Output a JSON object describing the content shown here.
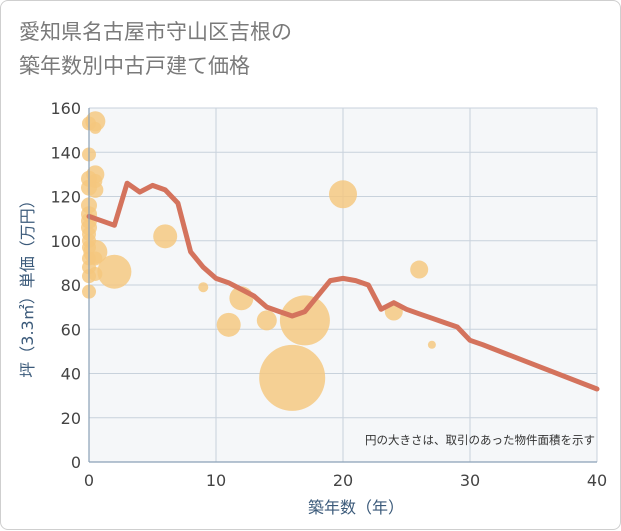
{
  "chart_data": {
    "type": "scatter",
    "title": "愛知県名古屋市守山区吉根の\n築年数別中古戸建て価格",
    "xlabel": "築年数（年）",
    "ylabel": "坪（3.3㎡）単価（万円）",
    "xlim": [
      0,
      40
    ],
    "ylim": [
      0,
      160
    ],
    "x_ticks": [
      0,
      10,
      20,
      30,
      40
    ],
    "y_ticks": [
      0,
      20,
      40,
      60,
      80,
      100,
      120,
      140,
      160
    ],
    "grid": true,
    "note": "円の大きさは、取引のあった物件面積を示す",
    "colors": {
      "bubble": "#f5c77e",
      "line": "#d4735d",
      "grid": "#c8d2dc",
      "plot_bg": "#f5f7f9"
    },
    "points": [
      {
        "x": 0,
        "y": 153,
        "s": 7
      },
      {
        "x": 0,
        "y": 139,
        "s": 7
      },
      {
        "x": 0,
        "y": 128,
        "s": 8
      },
      {
        "x": 0,
        "y": 124,
        "s": 8
      },
      {
        "x": 0,
        "y": 116,
        "s": 8
      },
      {
        "x": 0,
        "y": 112,
        "s": 8
      },
      {
        "x": 0,
        "y": 109,
        "s": 8
      },
      {
        "x": 0,
        "y": 106,
        "s": 8
      },
      {
        "x": 0,
        "y": 103,
        "s": 7
      },
      {
        "x": 0,
        "y": 100,
        "s": 7
      },
      {
        "x": 0,
        "y": 97,
        "s": 7
      },
      {
        "x": 0,
        "y": 92,
        "s": 7
      },
      {
        "x": 0,
        "y": 88,
        "s": 7
      },
      {
        "x": 0,
        "y": 84,
        "s": 7
      },
      {
        "x": 0,
        "y": 77,
        "s": 7
      },
      {
        "x": 0.5,
        "y": 154,
        "s": 10
      },
      {
        "x": 0.5,
        "y": 151,
        "s": 6
      },
      {
        "x": 0.5,
        "y": 130,
        "s": 9
      },
      {
        "x": 0.5,
        "y": 127,
        "s": 7
      },
      {
        "x": 0.5,
        "y": 123,
        "s": 8
      },
      {
        "x": 0.5,
        "y": 95,
        "s": 12
      },
      {
        "x": 0.5,
        "y": 92,
        "s": 7
      },
      {
        "x": 0.5,
        "y": 85,
        "s": 7
      },
      {
        "x": 2,
        "y": 86,
        "s": 17
      },
      {
        "x": 6,
        "y": 102,
        "s": 12
      },
      {
        "x": 9,
        "y": 79,
        "s": 5
      },
      {
        "x": 11,
        "y": 62,
        "s": 12
      },
      {
        "x": 12,
        "y": 74,
        "s": 12
      },
      {
        "x": 14,
        "y": 64,
        "s": 10
      },
      {
        "x": 16,
        "y": 38,
        "s": 33
      },
      {
        "x": 17,
        "y": 64,
        "s": 25
      },
      {
        "x": 20,
        "y": 121,
        "s": 14
      },
      {
        "x": 24,
        "y": 68,
        "s": 9
      },
      {
        "x": 26,
        "y": 87,
        "s": 9
      },
      {
        "x": 27,
        "y": 53,
        "s": 4
      }
    ],
    "trend": [
      {
        "x": 0,
        "y": 111
      },
      {
        "x": 1,
        "y": 109
      },
      {
        "x": 2,
        "y": 107
      },
      {
        "x": 3,
        "y": 126
      },
      {
        "x": 4,
        "y": 122
      },
      {
        "x": 5,
        "y": 125
      },
      {
        "x": 6,
        "y": 123
      },
      {
        "x": 7,
        "y": 117
      },
      {
        "x": 8,
        "y": 95
      },
      {
        "x": 9,
        "y": 88
      },
      {
        "x": 10,
        "y": 83
      },
      {
        "x": 11,
        "y": 81
      },
      {
        "x": 12,
        "y": 78
      },
      {
        "x": 13,
        "y": 75
      },
      {
        "x": 14,
        "y": 70
      },
      {
        "x": 15,
        "y": 68
      },
      {
        "x": 16,
        "y": 66
      },
      {
        "x": 17,
        "y": 68
      },
      {
        "x": 18,
        "y": 75
      },
      {
        "x": 19,
        "y": 82
      },
      {
        "x": 20,
        "y": 83
      },
      {
        "x": 21,
        "y": 82
      },
      {
        "x": 22,
        "y": 80
      },
      {
        "x": 23,
        "y": 69
      },
      {
        "x": 24,
        "y": 72
      },
      {
        "x": 25,
        "y": 69
      },
      {
        "x": 26,
        "y": 67
      },
      {
        "x": 27,
        "y": 65
      },
      {
        "x": 28,
        "y": 63
      },
      {
        "x": 29,
        "y": 61
      },
      {
        "x": 30,
        "y": 55
      },
      {
        "x": 31,
        "y": 53
      },
      {
        "x": 40,
        "y": 33
      }
    ]
  }
}
